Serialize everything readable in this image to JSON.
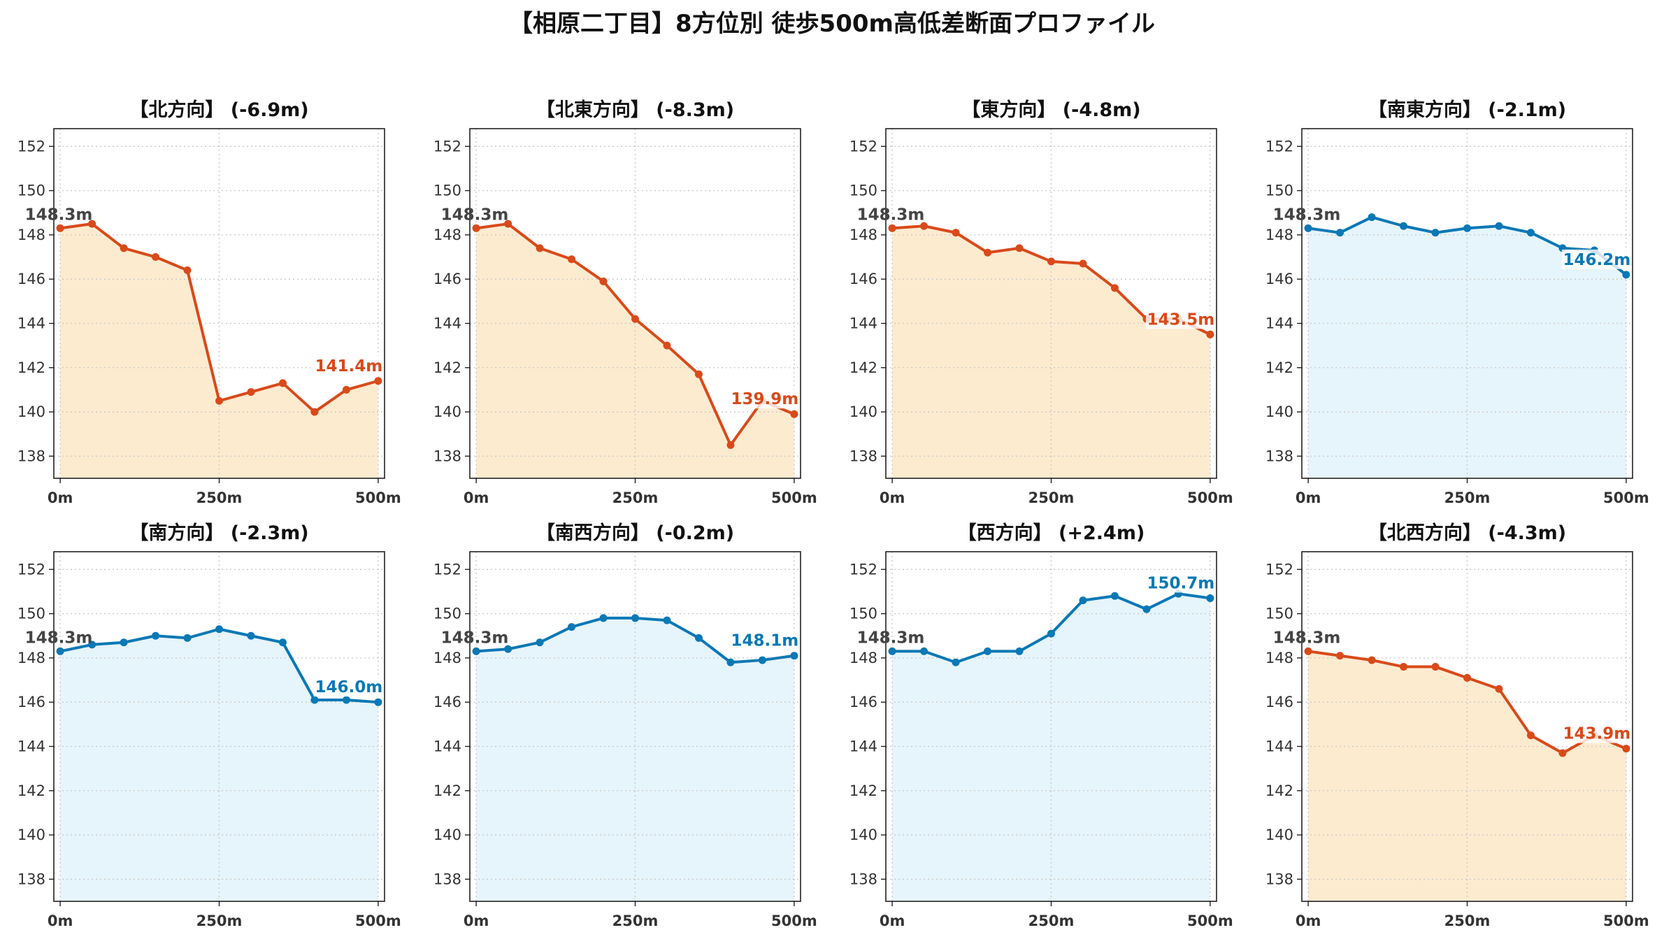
{
  "title": "【相原二丁目】8方位別 徒歩500m高低差断面プロファイル",
  "colors": {
    "down": "#d94a1a",
    "up": "#0a78b5",
    "down_fill": "#fdebd0",
    "up_fill": "#e6f4fb",
    "start_label": "#444444"
  },
  "chart_data": [
    {
      "type": "area",
      "title": "【北方向】 (-6.9m)",
      "trend": "down",
      "x": [
        0,
        50,
        100,
        150,
        200,
        250,
        300,
        350,
        400,
        450,
        500
      ],
      "values": [
        148.3,
        148.5,
        147.4,
        147.0,
        146.4,
        140.5,
        140.9,
        141.3,
        140.0,
        141.0,
        141.4
      ],
      "start_label": "148.3m",
      "end_label": "141.4m",
      "ylim": [
        137,
        152.8
      ],
      "yticks": [
        "138",
        "140",
        "142",
        "144",
        "146",
        "148",
        "150",
        "152"
      ],
      "xticks": [
        "0m",
        "250m",
        "500m"
      ],
      "grid": true
    },
    {
      "type": "area",
      "title": "【北東方向】 (-8.3m)",
      "trend": "down",
      "x": [
        0,
        50,
        100,
        150,
        200,
        250,
        300,
        350,
        400,
        450,
        500
      ],
      "values": [
        148.3,
        148.5,
        147.4,
        146.9,
        145.9,
        144.2,
        143.0,
        141.7,
        138.5,
        140.5,
        139.9
      ],
      "start_label": "148.3m",
      "end_label": "139.9m",
      "ylim": [
        137,
        152.8
      ],
      "yticks": [
        "138",
        "140",
        "142",
        "144",
        "146",
        "148",
        "150",
        "152"
      ],
      "xticks": [
        "0m",
        "250m",
        "500m"
      ],
      "grid": true
    },
    {
      "type": "area",
      "title": "【東方向】 (-4.8m)",
      "trend": "down",
      "x": [
        0,
        50,
        100,
        150,
        200,
        250,
        300,
        350,
        400,
        450,
        500
      ],
      "values": [
        148.3,
        148.4,
        148.1,
        147.2,
        147.4,
        146.8,
        146.7,
        145.6,
        144.2,
        144.2,
        143.5
      ],
      "start_label": "148.3m",
      "end_label": "143.5m",
      "ylim": [
        137,
        152.8
      ],
      "yticks": [
        "138",
        "140",
        "142",
        "144",
        "146",
        "148",
        "150",
        "152"
      ],
      "xticks": [
        "0m",
        "250m",
        "500m"
      ],
      "grid": true
    },
    {
      "type": "area",
      "title": "【南東方向】 (-2.1m)",
      "trend": "up",
      "x": [
        0,
        50,
        100,
        150,
        200,
        250,
        300,
        350,
        400,
        450,
        500
      ],
      "values": [
        148.3,
        148.1,
        148.8,
        148.4,
        148.1,
        148.3,
        148.4,
        148.1,
        147.4,
        147.3,
        146.2
      ],
      "start_label": "148.3m",
      "end_label": "146.2m",
      "ylim": [
        137,
        152.8
      ],
      "yticks": [
        "138",
        "140",
        "142",
        "144",
        "146",
        "148",
        "150",
        "152"
      ],
      "xticks": [
        "0m",
        "250m",
        "500m"
      ],
      "grid": true
    },
    {
      "type": "area",
      "title": "【南方向】 (-2.3m)",
      "trend": "up",
      "x": [
        0,
        50,
        100,
        150,
        200,
        250,
        300,
        350,
        400,
        450,
        500
      ],
      "values": [
        148.3,
        148.6,
        148.7,
        149.0,
        148.9,
        149.3,
        149.0,
        148.7,
        146.1,
        146.1,
        146.0
      ],
      "start_label": "148.3m",
      "end_label": "146.0m",
      "ylim": [
        137,
        152.8
      ],
      "yticks": [
        "138",
        "140",
        "142",
        "144",
        "146",
        "148",
        "150",
        "152"
      ],
      "xticks": [
        "0m",
        "250m",
        "500m"
      ],
      "grid": true
    },
    {
      "type": "area",
      "title": "【南西方向】 (-0.2m)",
      "trend": "up",
      "x": [
        0,
        50,
        100,
        150,
        200,
        250,
        300,
        350,
        400,
        450,
        500
      ],
      "values": [
        148.3,
        148.4,
        148.7,
        149.4,
        149.8,
        149.8,
        149.7,
        148.9,
        147.8,
        147.9,
        148.1
      ],
      "start_label": "148.3m",
      "end_label": "148.1m",
      "ylim": [
        137,
        152.8
      ],
      "yticks": [
        "138",
        "140",
        "142",
        "144",
        "146",
        "148",
        "150",
        "152"
      ],
      "xticks": [
        "0m",
        "250m",
        "500m"
      ],
      "grid": true
    },
    {
      "type": "area",
      "title": "【西方向】 (+2.4m)",
      "trend": "up",
      "x": [
        0,
        50,
        100,
        150,
        200,
        250,
        300,
        350,
        400,
        450,
        500
      ],
      "values": [
        148.3,
        148.3,
        147.8,
        148.3,
        148.3,
        149.1,
        150.6,
        150.8,
        150.2,
        150.9,
        150.7
      ],
      "start_label": "148.3m",
      "end_label": "150.7m",
      "ylim": [
        137,
        152.8
      ],
      "yticks": [
        "138",
        "140",
        "142",
        "144",
        "146",
        "148",
        "150",
        "152"
      ],
      "xticks": [
        "0m",
        "250m",
        "500m"
      ],
      "grid": true
    },
    {
      "type": "area",
      "title": "【北西方向】 (-4.3m)",
      "trend": "down",
      "x": [
        0,
        50,
        100,
        150,
        200,
        250,
        300,
        350,
        400,
        450,
        500
      ],
      "values": [
        148.3,
        148.1,
        147.9,
        147.6,
        147.6,
        147.1,
        146.6,
        144.5,
        143.7,
        144.5,
        143.9
      ],
      "start_label": "148.3m",
      "end_label": "143.9m",
      "ylim": [
        137,
        152.8
      ],
      "yticks": [
        "138",
        "140",
        "142",
        "144",
        "146",
        "148",
        "150",
        "152"
      ],
      "xticks": [
        "0m",
        "250m",
        "500m"
      ],
      "grid": true
    }
  ]
}
